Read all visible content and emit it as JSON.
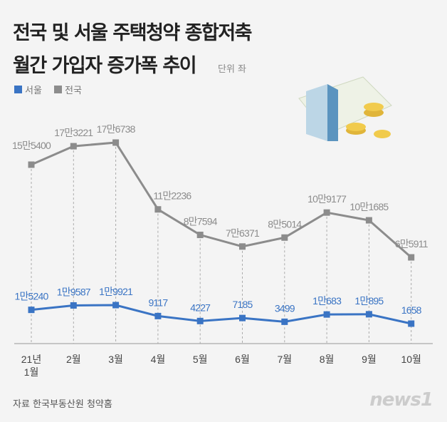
{
  "title_line1": "전국 및 서울 주택청약 종합저축",
  "title_line2": "월간 가입자 증가폭 추이",
  "unit": "단위 좌",
  "source": "자료 한국부동산원 청약홈",
  "logo": "news1",
  "chart_data": {
    "type": "line",
    "categories": [
      "21년\n1월",
      "2월",
      "3월",
      "4월",
      "5월",
      "6월",
      "7월",
      "8월",
      "9월",
      "10월"
    ],
    "series": [
      {
        "name": "서울",
        "color": "#3a74c4",
        "values": [
          15240,
          19587,
          19921,
          9117,
          4227,
          7185,
          3499,
          10683,
          10895,
          1658
        ],
        "labels": [
          "1만5240",
          "1만9587",
          "1만9921",
          "9117",
          "4227",
          "7185",
          "3499",
          "1만683",
          "1만895",
          "1658"
        ]
      },
      {
        "name": "전국",
        "color": "#8c8c8c",
        "values": [
          155400,
          173221,
          176738,
          112236,
          87594,
          76371,
          85014,
          109177,
          101685,
          65911
        ],
        "labels": [
          "15만5400",
          "17만3221",
          "17만6738",
          "11만2236",
          "8만7594",
          "7만6371",
          "8만5014",
          "10만9177",
          "10만1685",
          "6만5911"
        ]
      }
    ],
    "legend": "top-left",
    "grid": false
  }
}
